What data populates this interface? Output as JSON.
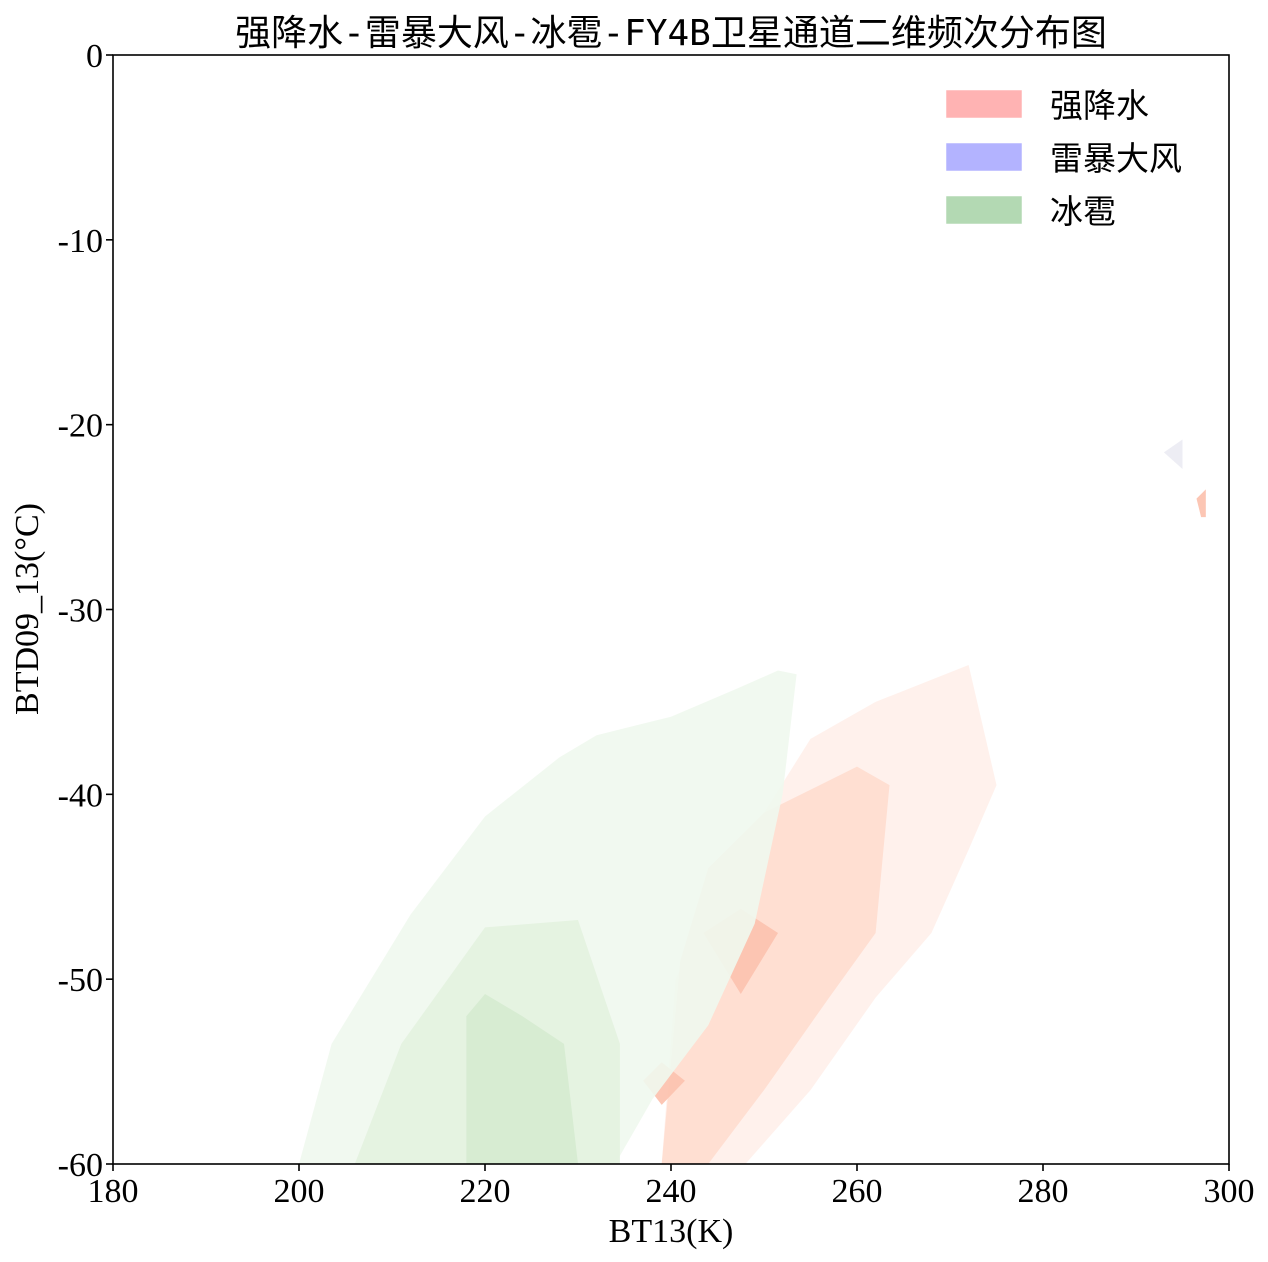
{
  "chart_data": {
    "type": "contour",
    "title": "强降水-雷暴大风-冰雹-FY4B卫星通道二维频次分布图",
    "xlabel": "BT13(K)",
    "ylabel": "BTD09_13(°C)",
    "xlim": [
      180,
      300
    ],
    "ylim": [
      -60,
      0
    ],
    "xticks": [
      180,
      200,
      220,
      240,
      260,
      280,
      300
    ],
    "yticks": [
      0,
      -10,
      -20,
      -30,
      -40,
      -50,
      -60
    ],
    "legend_position": "top-right",
    "series": [
      {
        "name": "强降水",
        "legend_color": "#ffb3b3",
        "levels": [
          {
            "color": "#fff0eb",
            "opacity": 0.95,
            "polygon": [
              [
                239,
                -60
              ],
              [
                240.5,
                -50
              ],
              [
                245,
                -45
              ],
              [
                255,
                -37
              ],
              [
                262,
                -35
              ],
              [
                272,
                -33
              ],
              [
                275,
                -39.5
              ],
              [
                272,
                -43
              ],
              [
                268,
                -47.5
              ],
              [
                262,
                -51
              ],
              [
                255,
                -56
              ],
              [
                248,
                -60
              ]
            ]
          },
          {
            "color": "#ffddd1",
            "opacity": 0.95,
            "polygon": [
              [
                239,
                -60
              ],
              [
                241,
                -49
              ],
              [
                244,
                -44
              ],
              [
                250,
                -41
              ],
              [
                256,
                -39.5
              ],
              [
                260,
                -38.5
              ],
              [
                263.5,
                -39.5
              ],
              [
                262,
                -47.5
              ],
              [
                257,
                -51
              ],
              [
                250,
                -56
              ],
              [
                247,
                -58
              ],
              [
                244,
                -60
              ]
            ]
          },
          {
            "color": "#fcc3b0",
            "opacity": 0.95,
            "polygon": [
              [
                243.5,
                -47.5
              ],
              [
                247.5,
                -46.2
              ],
              [
                251.5,
                -47.5
              ],
              [
                247.5,
                -50.8
              ]
            ]
          },
          {
            "color": "#fcc3b0",
            "opacity": 0.95,
            "polygon": [
              [
                237,
                -55.5
              ],
              [
                239,
                -54.5
              ],
              [
                241.5,
                -55.5
              ],
              [
                239,
                -56.8
              ]
            ]
          },
          {
            "color": "#fcc3b0",
            "opacity": 0.95,
            "polygon": [
              [
                296.5,
                -24
              ],
              [
                297.5,
                -23.5
              ],
              [
                297.5,
                -25
              ],
              [
                297,
                -25
              ]
            ]
          }
        ]
      },
      {
        "name": "雷暴大风",
        "legend_color": "#b3b3ff",
        "levels": [
          {
            "color": "#eeeef3",
            "opacity": 0.9,
            "polygon": [
              [
                211,
                -60
              ],
              [
                211,
                -55
              ],
              [
                215,
                -53.5
              ],
              [
                220,
                -52
              ],
              [
                223.5,
                -51
              ],
              [
                227.5,
                -55.5
              ],
              [
                225,
                -58
              ],
              [
                222,
                -60
              ]
            ]
          },
          {
            "color": "#e6e6ee",
            "opacity": 0.9,
            "polygon": [
              [
                213.5,
                -55.5
              ],
              [
                218,
                -54
              ],
              [
                223,
                -53
              ],
              [
                226,
                -55.5
              ],
              [
                223,
                -57.5
              ],
              [
                219,
                -56.5
              ]
            ]
          },
          {
            "color": "#d6d6e6",
            "opacity": 0.95,
            "polygon": [
              [
                222.5,
                -55.5
              ],
              [
                224,
                -55
              ],
              [
                224,
                -56
              ]
            ]
          },
          {
            "color": "#ececf3",
            "opacity": 0.95,
            "polygon": [
              [
                293,
                -21.5
              ],
              [
                295,
                -20.8
              ],
              [
                295,
                -22.4
              ]
            ]
          }
        ]
      },
      {
        "name": "冰雹",
        "legend_color": "#b3d9b3",
        "levels": [
          {
            "color": "#f0f8ee",
            "opacity": 0.9,
            "polygon": [
              [
                200,
                -60
              ],
              [
                203.5,
                -53.5
              ],
              [
                212,
                -46.5
              ],
              [
                220,
                -41.2
              ],
              [
                228,
                -38
              ],
              [
                232,
                -36.8
              ],
              [
                240,
                -35.8
              ],
              [
                247,
                -34.3
              ],
              [
                251.5,
                -33.3
              ],
              [
                253.5,
                -33.5
              ],
              [
                252,
                -40
              ],
              [
                249,
                -47
              ],
              [
                244,
                -52.5
              ],
              [
                238,
                -56.5
              ],
              [
                234,
                -60
              ]
            ]
          },
          {
            "color": "#e3f2df",
            "opacity": 0.9,
            "polygon": [
              [
                206,
                -60
              ],
              [
                211,
                -53.5
              ],
              [
                220,
                -47.2
              ],
              [
                230,
                -46.8
              ],
              [
                234.5,
                -53.5
              ],
              [
                234.5,
                -60
              ]
            ]
          },
          {
            "color": "#d5ebd0",
            "opacity": 0.9,
            "polygon": [
              [
                218,
                -60
              ],
              [
                218,
                -52
              ],
              [
                220,
                -50.8
              ],
              [
                224,
                -52
              ],
              [
                228.5,
                -53.5
              ],
              [
                230,
                -60
              ]
            ]
          }
        ]
      }
    ]
  }
}
